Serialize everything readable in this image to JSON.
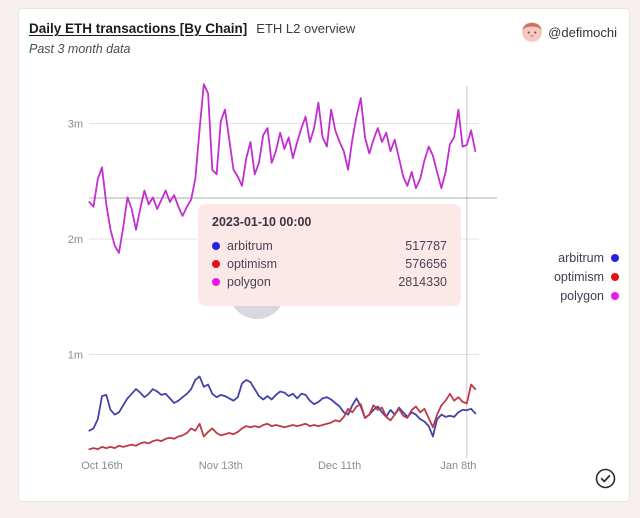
{
  "page": {
    "background": "#f7eeee",
    "card_background": "#ffffff"
  },
  "header": {
    "title": "Daily ETH transactions [By Chain]",
    "title_suffix": "ETH L2 overview",
    "subtitle": "Past 3 month data",
    "author_handle": "@defimochi"
  },
  "chart_data": {
    "type": "line",
    "title": "Daily ETH transactions [By Chain]",
    "x_axis": {
      "start_date": "2022-10-13",
      "interval": "daily",
      "tick_day_indices": [
        3,
        31,
        59,
        87
      ],
      "tick_labels": [
        "Oct 16th",
        "Nov 13th",
        "Dec 11th",
        "Jan 8th"
      ]
    },
    "y_axis": {
      "tick_labels": [
        "1m",
        "2m",
        "3m"
      ],
      "tick_values_millions": [
        1,
        2,
        3
      ],
      "range_millions": [
        0,
        3.5
      ],
      "grid": true
    },
    "legend_position": "right",
    "hover": {
      "day_index": 89,
      "date": "2023-01-10 00:00"
    },
    "series": [
      {
        "name": "arbitrum",
        "line_color": "#4343a8",
        "dot_color": "#2525dd",
        "values_millions": [
          0.34,
          0.36,
          0.44,
          0.64,
          0.65,
          0.52,
          0.48,
          0.5,
          0.56,
          0.62,
          0.66,
          0.7,
          0.67,
          0.63,
          0.66,
          0.7,
          0.68,
          0.65,
          0.66,
          0.62,
          0.58,
          0.6,
          0.63,
          0.66,
          0.7,
          0.78,
          0.81,
          0.72,
          0.74,
          0.66,
          0.63,
          0.65,
          0.64,
          0.62,
          0.6,
          0.63,
          0.75,
          0.78,
          0.76,
          0.7,
          0.64,
          0.61,
          0.64,
          0.61,
          0.65,
          0.68,
          0.67,
          0.64,
          0.66,
          0.62,
          0.66,
          0.65,
          0.6,
          0.57,
          0.59,
          0.62,
          0.63,
          0.61,
          0.58,
          0.55,
          0.5,
          0.48,
          0.56,
          0.62,
          0.55,
          0.45,
          0.48,
          0.52,
          0.55,
          0.5,
          0.46,
          0.52,
          0.48,
          0.54,
          0.5,
          0.46,
          0.5,
          0.48,
          0.44,
          0.42,
          0.38,
          0.29,
          0.44,
          0.48,
          0.46,
          0.47,
          0.46,
          0.5,
          0.52,
          0.5178,
          0.53,
          0.49
        ]
      },
      {
        "name": "optimism",
        "line_color": "#bf3a44",
        "dot_color": "#e31111",
        "values_millions": [
          0.18,
          0.19,
          0.18,
          0.2,
          0.19,
          0.2,
          0.19,
          0.21,
          0.2,
          0.21,
          0.22,
          0.21,
          0.23,
          0.24,
          0.23,
          0.25,
          0.26,
          0.25,
          0.27,
          0.28,
          0.27,
          0.29,
          0.3,
          0.32,
          0.36,
          0.34,
          0.4,
          0.29,
          0.33,
          0.36,
          0.32,
          0.3,
          0.31,
          0.32,
          0.31,
          0.33,
          0.36,
          0.38,
          0.37,
          0.38,
          0.37,
          0.39,
          0.4,
          0.38,
          0.39,
          0.38,
          0.37,
          0.38,
          0.39,
          0.38,
          0.39,
          0.4,
          0.38,
          0.39,
          0.38,
          0.39,
          0.4,
          0.41,
          0.43,
          0.42,
          0.46,
          0.53,
          0.5,
          0.55,
          0.57,
          0.45,
          0.48,
          0.56,
          0.52,
          0.54,
          0.46,
          0.43,
          0.48,
          0.53,
          0.47,
          0.45,
          0.52,
          0.55,
          0.5,
          0.53,
          0.45,
          0.37,
          0.48,
          0.56,
          0.6,
          0.66,
          0.6,
          0.63,
          0.59,
          0.5767,
          0.74,
          0.7
        ]
      },
      {
        "name": "polygon",
        "line_color": "#c32ed0",
        "dot_color": "#e619e6",
        "values_millions": [
          2.32,
          2.28,
          2.52,
          2.62,
          2.3,
          2.08,
          1.94,
          1.88,
          2.1,
          2.36,
          2.26,
          2.08,
          2.26,
          2.42,
          2.3,
          2.36,
          2.26,
          2.34,
          2.42,
          2.32,
          2.38,
          2.28,
          2.2,
          2.28,
          2.34,
          2.52,
          2.95,
          3.34,
          3.26,
          2.6,
          2.56,
          3.02,
          3.12,
          2.86,
          2.6,
          2.54,
          2.46,
          2.7,
          2.84,
          2.56,
          2.66,
          2.9,
          2.96,
          2.66,
          2.76,
          2.92,
          2.78,
          2.88,
          2.7,
          2.84,
          2.96,
          3.06,
          2.84,
          2.96,
          3.18,
          2.88,
          2.8,
          3.12,
          2.94,
          2.84,
          2.76,
          2.6,
          2.86,
          3.06,
          3.22,
          2.88,
          2.74,
          2.86,
          2.96,
          2.84,
          2.92,
          2.76,
          2.86,
          2.7,
          2.54,
          2.46,
          2.58,
          2.44,
          2.52,
          2.68,
          2.8,
          2.72,
          2.58,
          2.44,
          2.58,
          2.82,
          2.88,
          3.12,
          2.8,
          2.8143,
          2.94,
          2.76
        ]
      }
    ]
  },
  "tooltip": {
    "title": "2023-01-10 00:00",
    "background": "#fce9e7",
    "rows": [
      {
        "name": "arbitrum",
        "value": "517787",
        "color": "#2525dd"
      },
      {
        "name": "optimism",
        "value": "576656",
        "color": "#e31111"
      },
      {
        "name": "polygon",
        "value": "2814330",
        "color": "#e619e6"
      }
    ]
  },
  "legend": {
    "items": [
      {
        "label": "arbitrum",
        "color": "#2525dd"
      },
      {
        "label": "optimism",
        "color": "#e31111"
      },
      {
        "label": "polygon",
        "color": "#e619e6"
      }
    ]
  },
  "colors": {
    "gridline": "#e3e3e3",
    "crosshair_vertical": "#c9c9c9",
    "crosshair_horizontal": "#ababab",
    "axis_label": "#8c8c8c"
  },
  "footer": {
    "status_icon": "check-circle-icon"
  }
}
